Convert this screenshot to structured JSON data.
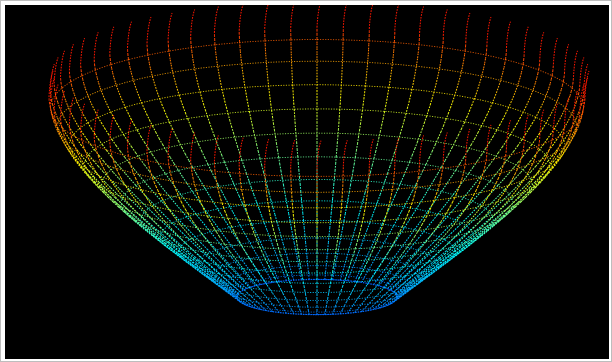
{
  "scene": {
    "background": "#000000",
    "frame_border": "#bdbdbd",
    "colormap": [
      "#0000ff",
      "#00a0ff",
      "#00ffff",
      "#80ff80",
      "#ffff00",
      "#ff8000",
      "#ff0000"
    ],
    "meridian_count": 64,
    "parallel_count": 14
  }
}
